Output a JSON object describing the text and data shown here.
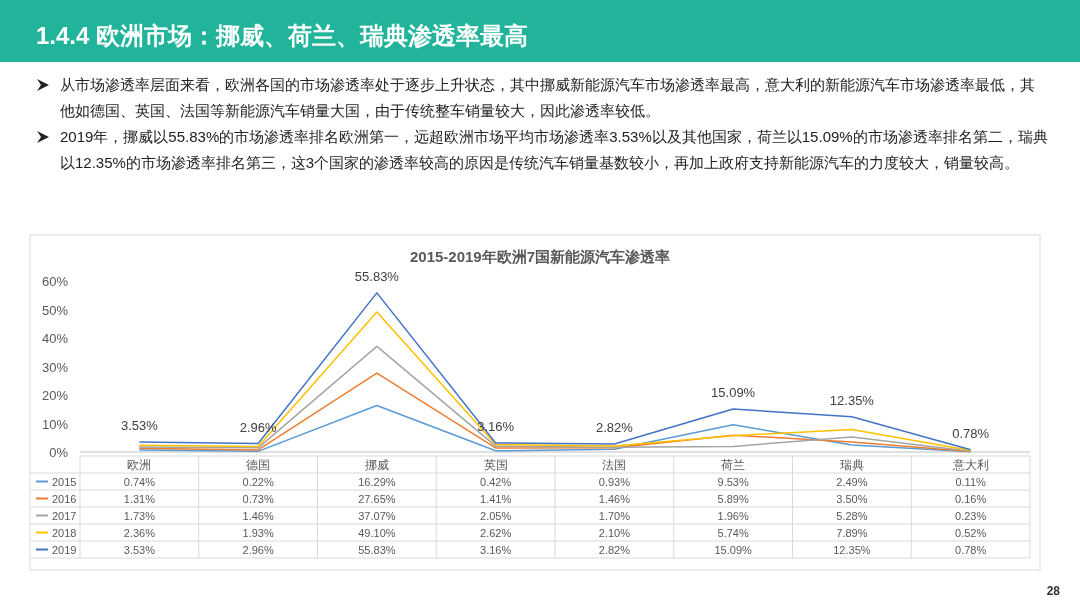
{
  "chart_data": {
    "type": "line",
    "title": "1.4.4 欧洲市场：挪威、荷兰、瑞典渗透率最高",
    "subtitle": "2015-2019年欧洲7国新能源汽车渗透率",
    "annotations": [
      "从市场渗透率层面来看，欧洲各国的市场渗透率处于逐步上升状态，其中挪威新能源汽车市场渗透率最高，意大利的新能源汽车市场渗透率最低，其他如德国、英国、法国等新能源汽车销量大国，由于传统整车销量较大，因此渗透率较低。",
      "2019年，挪威以55.83%的市场渗透率排名欧洲第一，远超欧洲市场平均市场渗透率3.53%以及其他国家，荷兰以15.09%的市场渗透率排名第二，瑞典以12.35%的市场渗透率排名第三，这3个国家的渗透率较高的原因是传统汽车销量基数较小，再加上政府支持新能源汽车的力度较大，销量较高。",
      "28"
    ],
    "categories": [
      "欧洲",
      "德国",
      "挪威",
      "英国",
      "法国",
      "荷兰",
      "瑞典",
      "意大利"
    ],
    "series": [
      {
        "name": "2015",
        "color": "#5b9bd5",
        "values": [
          0.74,
          0.22,
          16.29,
          0.42,
          0.93,
          9.53,
          2.49,
          0.11
        ],
        "value_labels": [
          "0.74%",
          "0.22%",
          "16.29%",
          "0.42%",
          "0.93%",
          "9.53%",
          "2.49%",
          "0.11%"
        ]
      },
      {
        "name": "2016",
        "color": "#ed7d31",
        "values": [
          1.31,
          0.73,
          27.65,
          1.41,
          1.46,
          5.89,
          3.5,
          0.16
        ],
        "value_labels": [
          "1.31%",
          "0.73%",
          "27.65%",
          "1.41%",
          "1.46%",
          "5.89%",
          "3.50%",
          "0.16%"
        ]
      },
      {
        "name": "2017",
        "color": "#a5a5a5",
        "values": [
          1.73,
          1.46,
          37.07,
          2.05,
          1.7,
          1.96,
          5.28,
          0.23
        ],
        "value_labels": [
          "1.73%",
          "1.46%",
          "37.07%",
          "2.05%",
          "1.70%",
          "1.96%",
          "5.28%",
          "0.23%"
        ]
      },
      {
        "name": "2018",
        "color": "#ffc000",
        "values": [
          2.36,
          1.93,
          49.1,
          2.62,
          2.1,
          5.74,
          7.89,
          0.52
        ],
        "value_labels": [
          "2.36%",
          "1.93%",
          "49.10%",
          "2.62%",
          "2.10%",
          "5.74%",
          "7.89%",
          "0.52%"
        ]
      },
      {
        "name": "2019",
        "color": "#4472c4",
        "values": [
          3.53,
          2.96,
          55.83,
          3.16,
          2.82,
          15.09,
          12.35,
          0.78
        ],
        "value_labels": [
          "3.53%",
          "2.96%",
          "55.83%",
          "3.16%",
          "2.82%",
          "15.09%",
          "12.35%",
          "0.78%"
        ]
      }
    ],
    "ylim": [
      0,
      60
    ],
    "yticks": [
      {
        "value": 0,
        "label": "0%"
      },
      {
        "value": 10,
        "label": "10%"
      },
      {
        "value": 20,
        "label": "20%"
      },
      {
        "value": 30,
        "label": "30%"
      },
      {
        "value": 40,
        "label": "40%"
      },
      {
        "value": 50,
        "label": "50%"
      },
      {
        "value": 60,
        "label": "60%"
      }
    ],
    "legend": "bottom left",
    "marker": "none",
    "line_style": "solid"
  }
}
